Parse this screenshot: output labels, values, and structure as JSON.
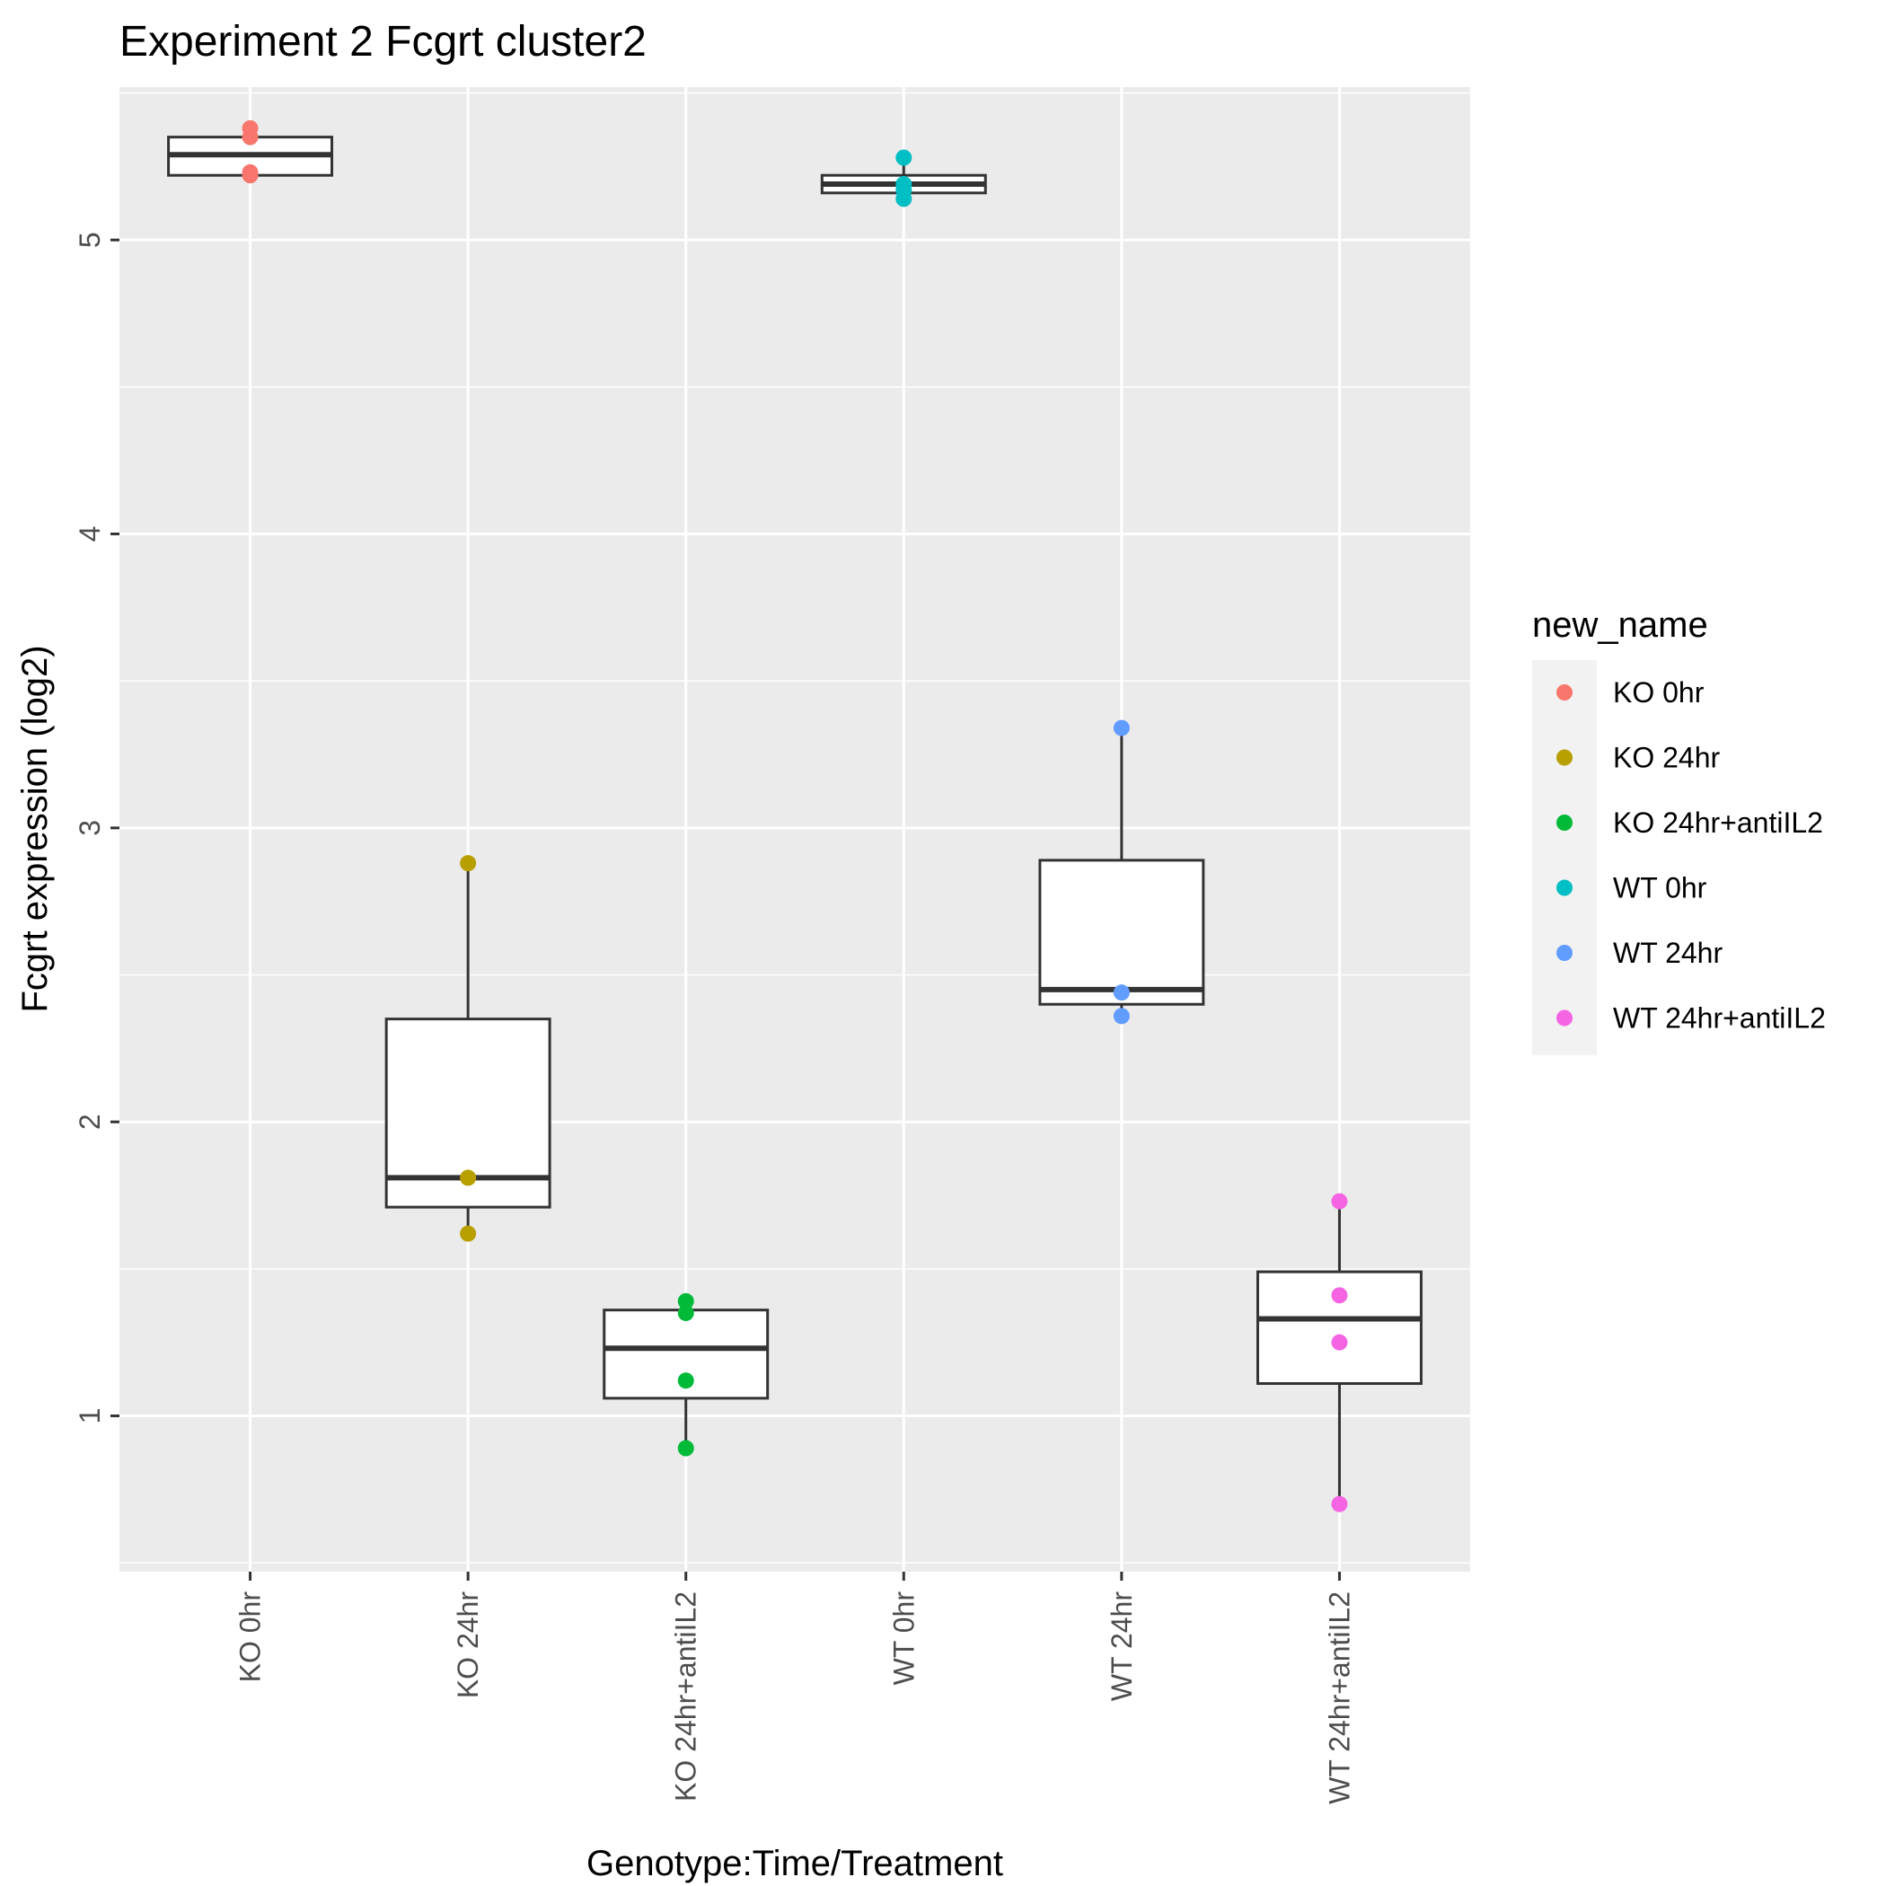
{
  "chart_data": {
    "type": "boxplot",
    "title": "Experiment 2 Fcgrt cluster2",
    "xlabel": "Genotype:Time/Treatment",
    "ylabel": "Fcgrt expression (log2)",
    "ylim": [
      0.47,
      5.52
    ],
    "yticks": [
      1,
      2,
      3,
      4,
      5
    ],
    "categories": [
      "KO 0hr",
      "KO 24hr",
      "KO 24hr+antiIL2",
      "WT 0hr",
      "WT 24hr",
      "WT 24hr+antiIL2"
    ],
    "colors": [
      "#F8766D",
      "#B79F00",
      "#00BA38",
      "#00BFC4",
      "#619CFF",
      "#F564E3"
    ],
    "boxes": [
      {
        "category": "KO 0hr",
        "lower": 5.22,
        "q1": 5.22,
        "median": 5.29,
        "q3": 5.35,
        "upper": 5.38
      },
      {
        "category": "KO 24hr",
        "lower": 1.62,
        "q1": 1.71,
        "median": 1.81,
        "q3": 2.35,
        "upper": 2.88
      },
      {
        "category": "KO 24hr+antiIL2",
        "lower": 0.89,
        "q1": 1.06,
        "median": 1.23,
        "q3": 1.36,
        "upper": 1.39
      },
      {
        "category": "WT 0hr",
        "lower": 5.14,
        "q1": 5.16,
        "median": 5.19,
        "q3": 5.22,
        "upper": 5.28
      },
      {
        "category": "WT 24hr",
        "lower": 2.36,
        "q1": 2.4,
        "median": 2.45,
        "q3": 2.89,
        "upper": 3.34
      },
      {
        "category": "WT 24hr+antiIL2",
        "lower": 0.7,
        "q1": 1.11,
        "median": 1.33,
        "q3": 1.49,
        "upper": 1.73
      }
    ],
    "points": [
      {
        "category": "KO 0hr",
        "values": [
          5.38,
          5.35,
          5.23,
          5.22
        ]
      },
      {
        "category": "KO 24hr",
        "values": [
          2.88,
          1.81,
          1.62
        ]
      },
      {
        "category": "KO 24hr+antiIL2",
        "values": [
          1.39,
          1.35,
          1.12,
          0.89
        ]
      },
      {
        "category": "WT 0hr",
        "values": [
          5.28,
          5.19,
          5.17,
          5.14
        ]
      },
      {
        "category": "WT 24hr",
        "values": [
          3.34,
          2.44,
          2.36
        ]
      },
      {
        "category": "WT 24hr+antiIL2",
        "values": [
          1.73,
          1.41,
          1.25,
          0.7
        ]
      }
    ],
    "legend": {
      "title": "new_name",
      "entries": [
        "KO 0hr",
        "KO 24hr",
        "KO 24hr+antiIL2",
        "WT 0hr",
        "WT 24hr",
        "WT 24hr+antiIL2"
      ],
      "position": "right"
    },
    "grid": true
  }
}
